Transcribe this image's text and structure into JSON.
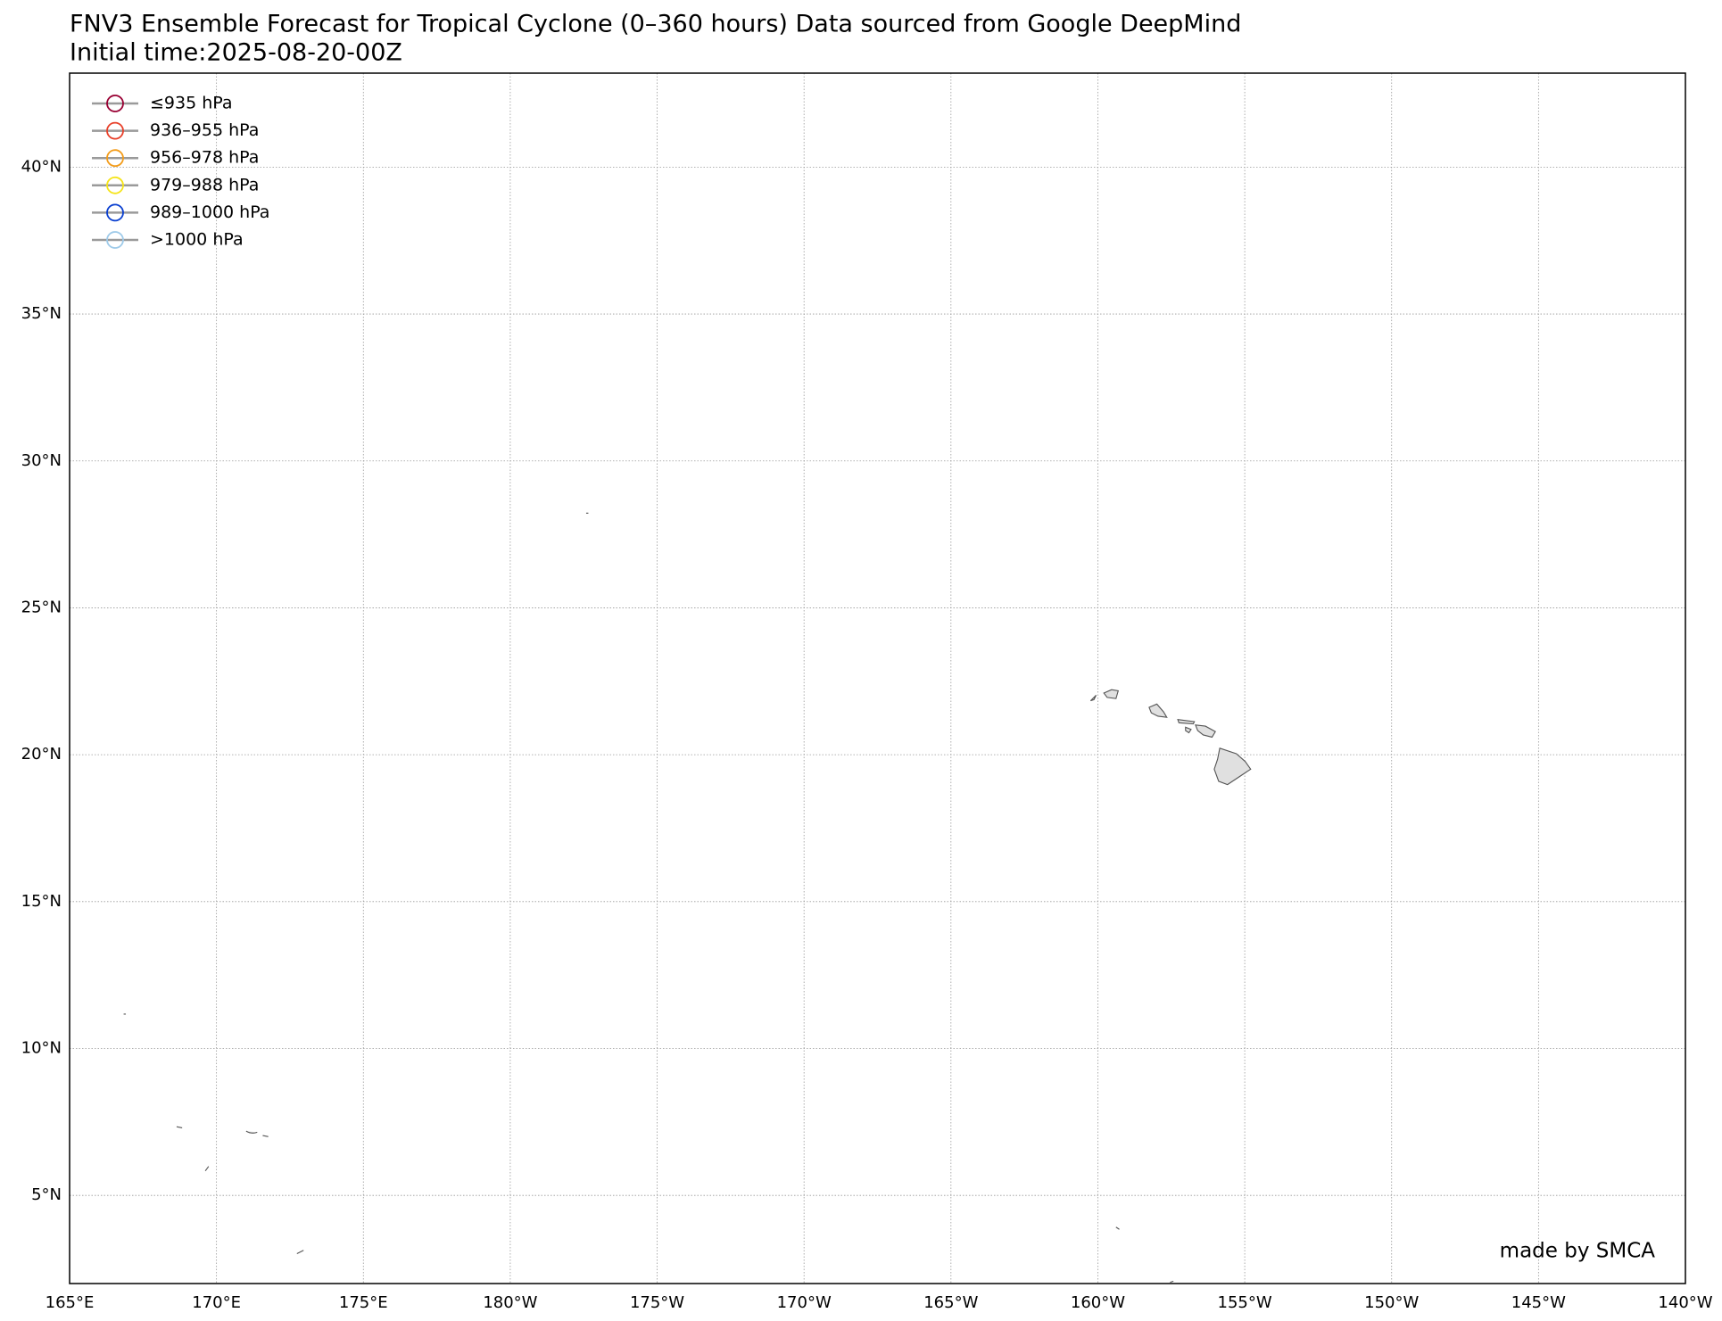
{
  "chart_data": {
    "type": "track-map",
    "title": "FNV3 Ensemble Forecast for Tropical Cyclone (0–360 hours) Data sourced from Google DeepMind",
    "subtitle": "Initial time:2025-08-20-00Z",
    "annotation": "made by SMCA",
    "xlim": [
      165,
      220
    ],
    "ylim": [
      2,
      43.2
    ],
    "xticks": [
      {
        "value": 165,
        "label": "165°E"
      },
      {
        "value": 170,
        "label": "170°E"
      },
      {
        "value": 175,
        "label": "175°E"
      },
      {
        "value": 180,
        "label": "180°W"
      },
      {
        "value": 185,
        "label": "175°W"
      },
      {
        "value": 190,
        "label": "170°W"
      },
      {
        "value": 195,
        "label": "165°W"
      },
      {
        "value": 200,
        "label": "160°W"
      },
      {
        "value": 205,
        "label": "155°W"
      },
      {
        "value": 210,
        "label": "150°W"
      },
      {
        "value": 215,
        "label": "145°W"
      },
      {
        "value": 220,
        "label": "140°W"
      }
    ],
    "yticks": [
      {
        "value": 5,
        "label": "5°N"
      },
      {
        "value": 10,
        "label": "10°N"
      },
      {
        "value": 15,
        "label": "15°N"
      },
      {
        "value": 20,
        "label": "20°N"
      },
      {
        "value": 25,
        "label": "25°N"
      },
      {
        "value": 30,
        "label": "30°N"
      },
      {
        "value": 35,
        "label": "35°N"
      },
      {
        "value": 40,
        "label": "40°N"
      }
    ],
    "grid": true,
    "legend_position": "upper-left",
    "series": [
      {
        "name": "≤935 hPa",
        "color": "#990033"
      },
      {
        "name": "936–955 hPa",
        "color": "#e8402a"
      },
      {
        "name": "956–978 hPa",
        "color": "#f39c1a"
      },
      {
        "name": "979–988 hPa",
        "color": "#f5e41a"
      },
      {
        "name": "989–1000 hPa",
        "color": "#0a3fd0"
      },
      {
        "name": ">1000 hPa",
        "color": "#9ecae9"
      }
    ]
  }
}
